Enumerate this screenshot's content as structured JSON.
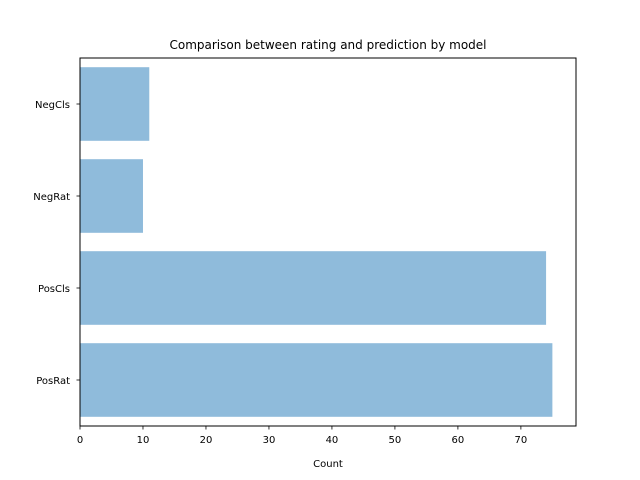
{
  "chart_data": {
    "type": "bar",
    "orientation": "horizontal",
    "title": "Comparison between rating and prediction by model",
    "xlabel": "Count",
    "ylabel": "",
    "categories": [
      "PosRat",
      "PosCls",
      "NegRat",
      "NegCls"
    ],
    "values": [
      75,
      74,
      10,
      11
    ],
    "xlim": [
      0,
      78.75
    ],
    "xticks": [
      0,
      10,
      20,
      30,
      40,
      50,
      60,
      70
    ],
    "grid": false,
    "legend": "none",
    "bar_color": "#8fbbdb"
  }
}
